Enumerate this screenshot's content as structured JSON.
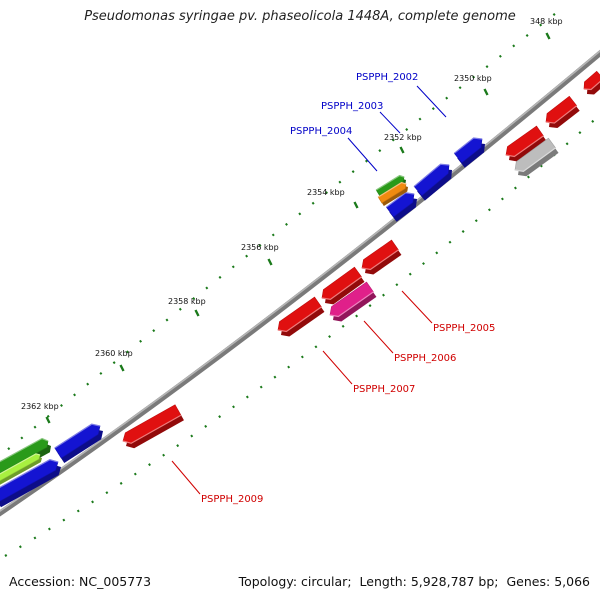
{
  "title": "Pseudomonas syringae pv. phaseolicola 1448A, complete genome",
  "footer": {
    "accession_label": "Accession:",
    "accession": "NC_005773",
    "topology_label": "Topology:",
    "topology": "circular;",
    "length_label": "Length:",
    "length": "5,928,787 bp;",
    "genes_label": "Genes:",
    "genes": "5,066"
  },
  "colors": {
    "forward_gene": "#1414d2",
    "reverse_gene": "#e01010",
    "magenta_gene": "#e0208a",
    "green_gene": "#2a9a1a",
    "light_green_gene": "#a8f040",
    "orange_gene": "#f08a10",
    "grey_gene": "#bdbdbd",
    "backbone": "#7a7a7a",
    "tick_dots": "#1b7a1b",
    "forward_label": "#0000c8",
    "reverse_label": "#d00000"
  },
  "ticks": [
    "348 kbp",
    "2350 kbp",
    "2352 kbp",
    "2354 kbp",
    "2356 kbp",
    "2358 kbp",
    "2360 kbp",
    "2362 kbp"
  ],
  "genes": {
    "forward": [
      "PSPPH_2002",
      "PSPPH_2003",
      "PSPPH_2004"
    ],
    "reverse": [
      "PSPPH_2005",
      "PSPPH_2006",
      "PSPPH_2007",
      "PSPPH_2009"
    ]
  }
}
